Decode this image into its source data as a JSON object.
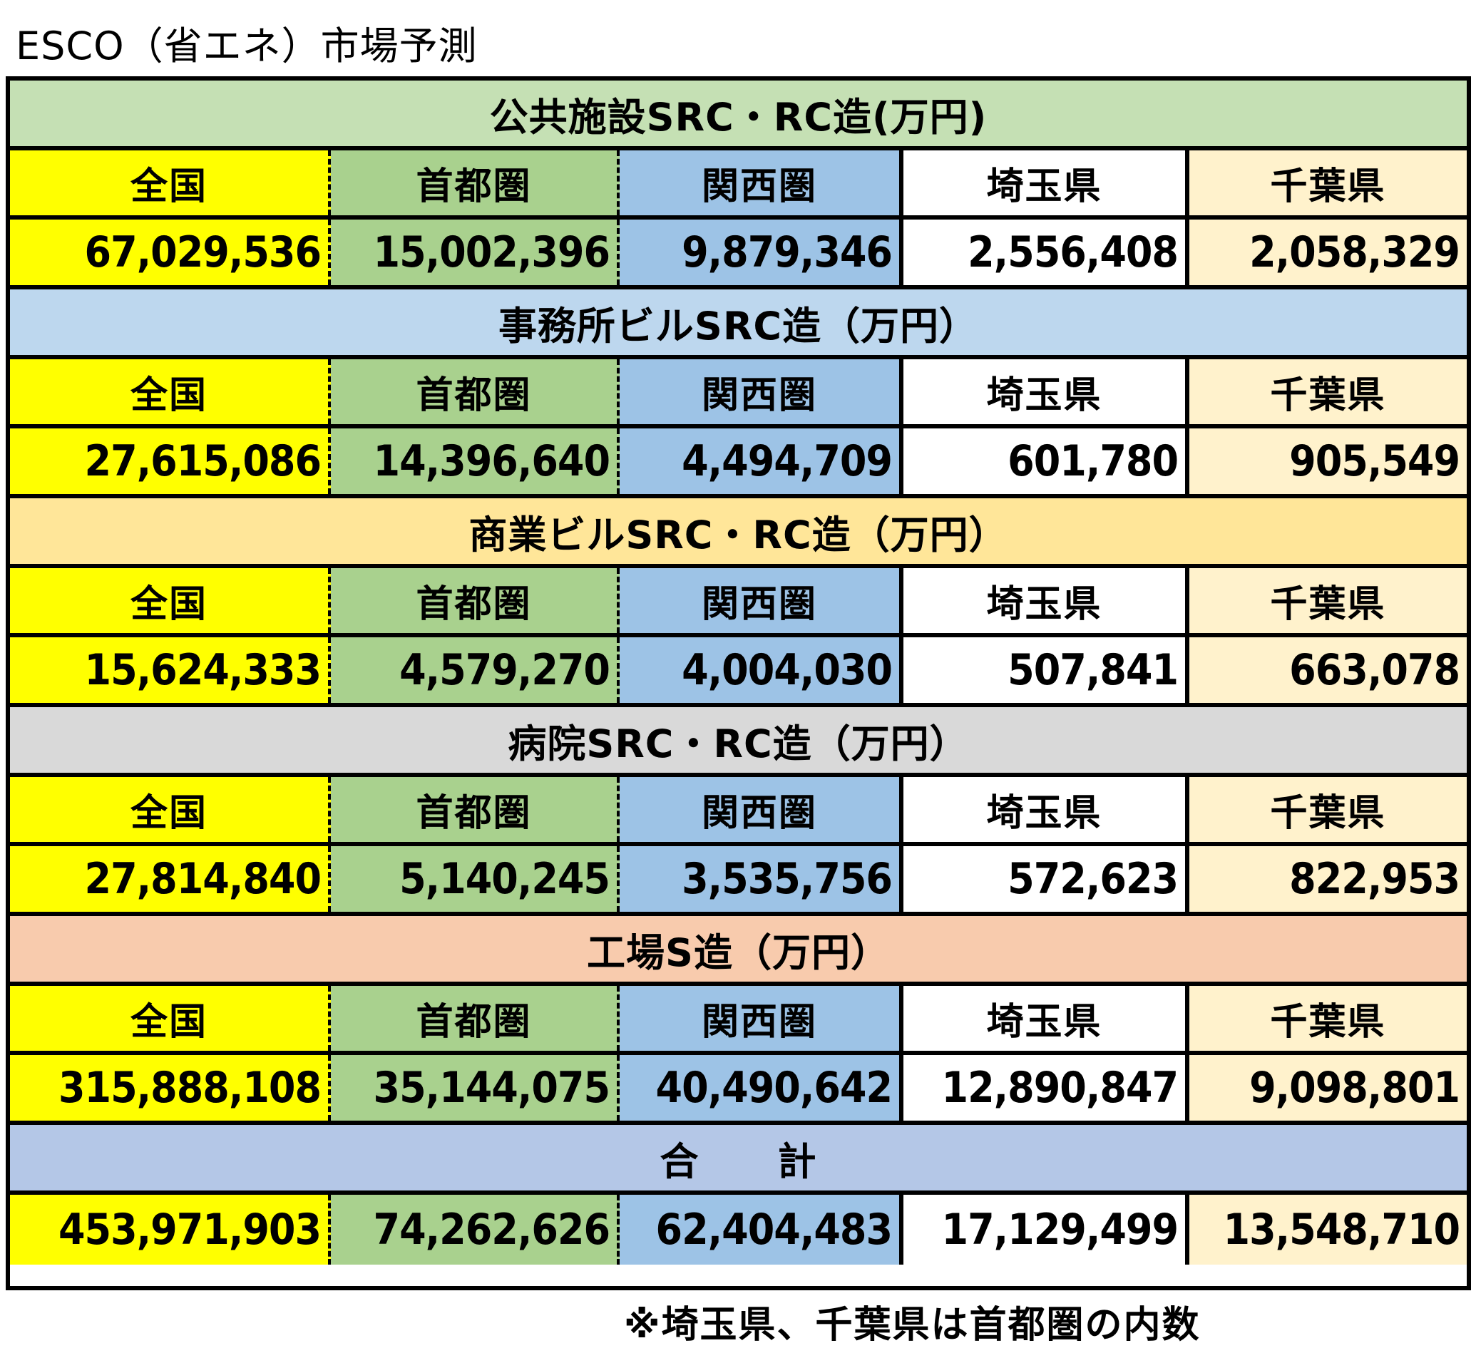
{
  "title": "ESCO（省エネ）市場予測",
  "columns": [
    "全国",
    "首都圏",
    "関西圏",
    "埼玉県",
    "千葉県"
  ],
  "colors": {
    "national": "#ffff00",
    "shutoken": "#a9d18e",
    "kansai": "#9dc3e6",
    "saitama": "#ffffff",
    "chiba": "#fff2cc"
  },
  "sections": [
    {
      "title": "公共施設SRC・RC造(万円)",
      "color": "#c5e0b4",
      "values": [
        "67,029,536",
        "15,002,396",
        "9,879,346",
        "2,556,408",
        "2,058,329"
      ]
    },
    {
      "title": "事務所ビルSRC造（万円）",
      "color": "#bdd7ee",
      "values": [
        "27,615,086",
        "14,396,640",
        "4,494,709",
        "601,780",
        "905,549"
      ]
    },
    {
      "title": "商業ビルSRC・RC造（万円）",
      "color": "#ffe699",
      "values": [
        "15,624,333",
        "4,579,270",
        "4,004,030",
        "507,841",
        "663,078"
      ]
    },
    {
      "title": "病院SRC・RC造（万円）",
      "color": "#d9d9d9",
      "values": [
        "27,814,840",
        "5,140,245",
        "3,535,756",
        "572,623",
        "822,953"
      ]
    },
    {
      "title": "工場S造（万円）",
      "color": "#f8cbad",
      "values": [
        "315,888,108",
        "35,144,075",
        "40,490,642",
        "12,890,847",
        "9,098,801"
      ]
    }
  ],
  "total": {
    "title": "合　　計",
    "color": "#b4c7e7",
    "values": [
      "453,971,903",
      "74,262,626",
      "62,404,483",
      "17,129,499",
      "13,548,710"
    ]
  },
  "note": "※埼玉県、千葉県は首都圏の内数"
}
